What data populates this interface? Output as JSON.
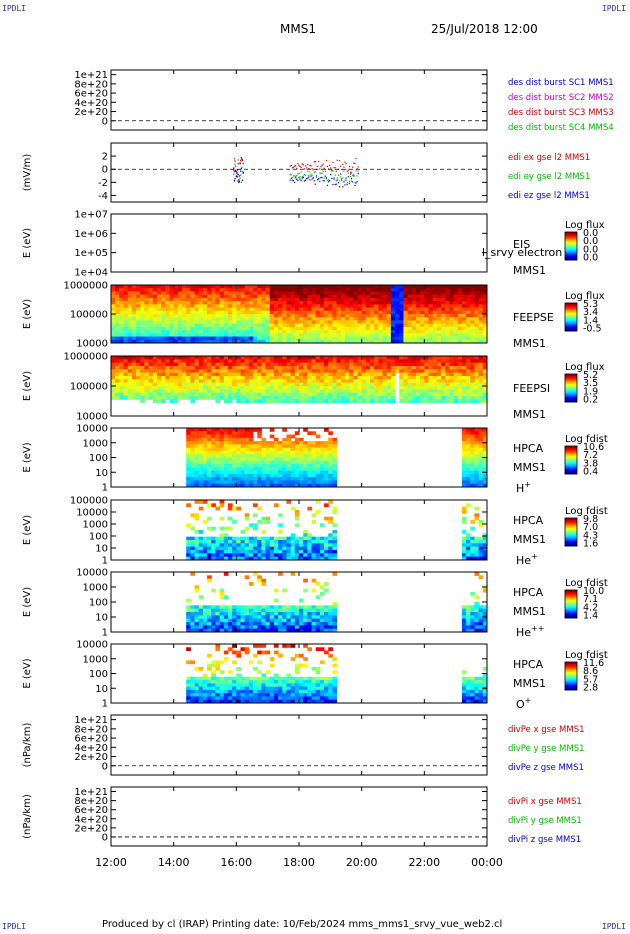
{
  "header": {
    "corner_tl": "IPDLI",
    "corner_tr": "IPDLI",
    "corner_bl": "IPDLI",
    "corner_br": "IPDLI",
    "spacecraft": "MMS1",
    "datetime": "25/Jul/2018 12:00"
  },
  "footer": {
    "text": "Produced by cl (IRAP)   Printing date: 10/Feb/2024   mms_mms1_srvy_vue_web2.cl"
  },
  "chart_data": {
    "type": "heatmap",
    "x_axis": {
      "ticks": [
        "12:00",
        "14:00",
        "16:00",
        "18:00",
        "20:00",
        "22:00",
        "00:00"
      ],
      "range_hours": [
        12,
        24
      ]
    },
    "panels": [
      {
        "id": "des-dist",
        "kind": "line",
        "ylabel": "",
        "yticks": [
          "1e+21",
          "8e+20",
          "6e+20",
          "4e+20",
          "2e+20",
          "0"
        ],
        "ylim": [
          -2e+20,
          1.1e+21
        ],
        "zero_line": true,
        "legend": [
          {
            "label": "des dist burst SC1 MMS1",
            "color": "#0000cc"
          },
          {
            "label": "des dist burst SC2 MMS2",
            "color": "#cc00cc"
          },
          {
            "label": "des dist burst SC3 MMS3",
            "color": "#cc0000"
          },
          {
            "label": "des dist burst SC4 MMS4",
            "color": "#00bb00"
          }
        ]
      },
      {
        "id": "edi",
        "kind": "line",
        "ylabel": "(mV/m)",
        "yticks": [
          "2",
          "0",
          "-2",
          "-4"
        ],
        "ylim": [
          -5,
          4
        ],
        "zero_line": true,
        "legend": [
          {
            "label": "edi ex gse l2 MMS1",
            "color": "#cc0000"
          },
          {
            "label": "edi ey gse l2 MMS1",
            "color": "#00bb00"
          },
          {
            "label": "edi ez gse l2 MMS1",
            "color": "#0000cc"
          }
        ]
      },
      {
        "id": "eis",
        "kind": "spectrogram",
        "ylabel": "E (eV)",
        "yticks": [
          "1e+07",
          "1e+06",
          "1e+05",
          "1e+04"
        ],
        "label_lines": [
          "EIS",
          "MMS1"
        ],
        "overlay_text": "l_srvy electron to",
        "colorbar": {
          "title": "Log flux",
          "ticks": [
            "0.0",
            "0.0",
            "0.0",
            "0.0"
          ]
        }
      },
      {
        "id": "feepse",
        "kind": "spectrogram",
        "ylabel": "E (eV)",
        "yticks": [
          "1000000",
          "100000",
          "10000"
        ],
        "label_lines": [
          "FEEPSE",
          "MMS1"
        ],
        "colorbar": {
          "title": "Log flux",
          "ticks": [
            "5.3",
            "3.4",
            "1.4",
            "-0.5"
          ]
        }
      },
      {
        "id": "feepsi",
        "kind": "spectrogram",
        "ylabel": "E (eV)",
        "yticks": [
          "1000000",
          "100000",
          "10000"
        ],
        "label_lines": [
          "FEEPSI",
          "MMS1"
        ],
        "colorbar": {
          "title": "Log flux",
          "ticks": [
            "5.2",
            "3.5",
            "1.9",
            "0.2"
          ]
        }
      },
      {
        "id": "hpca-h",
        "kind": "spectrogram",
        "ylabel": "E (eV)",
        "yticks": [
          "10000",
          "1000",
          "100",
          "10",
          "1"
        ],
        "label_lines": [
          "HPCA",
          "MMS1"
        ],
        "species": "H",
        "species_sup": "+",
        "colorbar": {
          "title": "Log fdist",
          "ticks": [
            "10.6",
            "7.2",
            "3.8",
            "0.4"
          ]
        }
      },
      {
        "id": "hpca-he1",
        "kind": "spectrogram",
        "ylabel": "E (eV)",
        "yticks": [
          "100000",
          "10000",
          "1000",
          "100",
          "10",
          "1"
        ],
        "label_lines": [
          "HPCA",
          "MMS1"
        ],
        "species": "He",
        "species_sup": "+",
        "colorbar": {
          "title": "Log fdist",
          "ticks": [
            "9.8",
            "7.0",
            "4.3",
            "1.6"
          ]
        }
      },
      {
        "id": "hpca-he2",
        "kind": "spectrogram",
        "ylabel": "E (eV)",
        "yticks": [
          "10000",
          "1000",
          "100",
          "10",
          "1"
        ],
        "label_lines": [
          "HPCA",
          "MMS1"
        ],
        "species": "He",
        "species_sup": "++",
        "colorbar": {
          "title": "Log fdist",
          "ticks": [
            "10.0",
            "7.1",
            "4.2",
            "1.4"
          ]
        }
      },
      {
        "id": "hpca-o",
        "kind": "spectrogram",
        "ylabel": "E (eV)",
        "yticks": [
          "10000",
          "1000",
          "100",
          "10",
          "1"
        ],
        "label_lines": [
          "HPCA",
          "MMS1"
        ],
        "species": "O",
        "species_sup": "+",
        "colorbar": {
          "title": "Log fdist",
          "ticks": [
            "11.6",
            "8.6",
            "5.7",
            "2.8"
          ]
        }
      },
      {
        "id": "divpe",
        "kind": "line",
        "ylabel": "(nPa/km)",
        "yticks": [
          "1e+21",
          "8e+20",
          "6e+20",
          "4e+20",
          "2e+20",
          "0"
        ],
        "ylim": [
          -2e+20,
          1.1e+21
        ],
        "zero_line": true,
        "legend": [
          {
            "label": "divPe x gse MMS1",
            "color": "#cc0000"
          },
          {
            "label": "divPe y gse MMS1",
            "color": "#00bb00"
          },
          {
            "label": "divPe z gse MMS1",
            "color": "#0000cc"
          }
        ]
      },
      {
        "id": "divpi",
        "kind": "line",
        "ylabel": "(nPa/km)",
        "yticks": [
          "1e+21",
          "8e+20",
          "6e+20",
          "4e+20",
          "2e+20",
          "0"
        ],
        "ylim": [
          -2e+20,
          1.1e+21
        ],
        "zero_line": true,
        "legend": [
          {
            "label": "divPi x gse MMS1",
            "color": "#cc0000"
          },
          {
            "label": "divPi y gse MMS1",
            "color": "#00bb00"
          },
          {
            "label": "divPi z gse MMS1",
            "color": "#0000cc"
          }
        ]
      }
    ]
  }
}
